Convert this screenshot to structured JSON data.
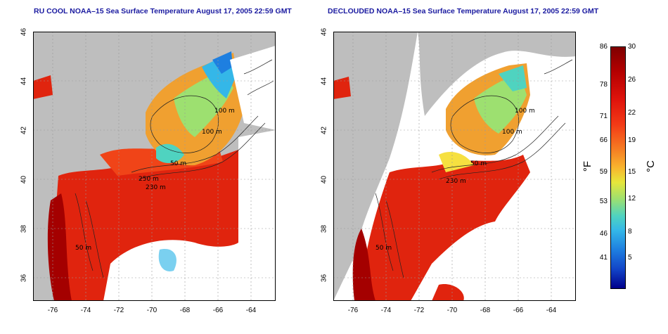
{
  "left_panel": {
    "title": "RU COOL NOAA–15 Sea Surface Temperature August 17, 2005 22:59 GMT",
    "contour_labels": [
      "100 m",
      "100 m",
      "50 m",
      "250 m",
      "230 m",
      "50 m"
    ]
  },
  "right_panel": {
    "title": "DECLOUDED NOAA–15 Sea Surface Temperature August 17, 2005 22:59 GMT",
    "contour_labels": [
      "100 m",
      "100 m",
      "50 m",
      "230 m",
      "50 m"
    ]
  },
  "axes": {
    "lat_labels": [
      "46",
      "44",
      "42",
      "40",
      "38",
      "36"
    ],
    "lon_labels": [
      "-76",
      "-74",
      "-72",
      "-70",
      "-68",
      "-66",
      "-64"
    ]
  },
  "colorbar": {
    "fahrenheit_ticks": [
      "86",
      "78",
      "71",
      "66",
      "59",
      "53",
      "46",
      "41"
    ],
    "celsius_ticks": [
      "30",
      "26",
      "22",
      "19",
      "15",
      "12",
      "8",
      "5"
    ],
    "unit_fahrenheit": "°F",
    "unit_celsius": "°C"
  },
  "colors": {
    "title": "#1a1aa0",
    "land": "#bebebe",
    "warm": "#e0140c",
    "cool": "#34b7e8"
  }
}
